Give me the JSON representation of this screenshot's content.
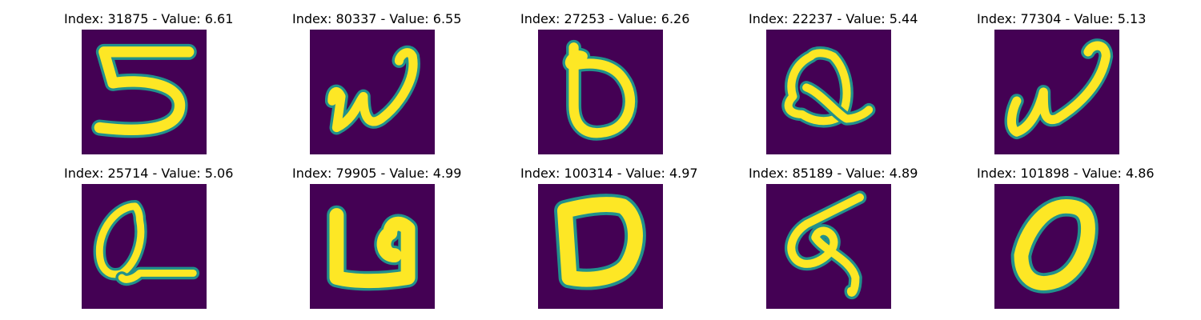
{
  "panels": [
    {
      "index": "31875",
      "value": "6.61",
      "title": "Index: 31875 - Value: 6.61",
      "glyph": "5",
      "icon": "handwritten-5-icon"
    },
    {
      "index": "80337",
      "value": "6.55",
      "title": "Index: 80337 - Value: 6.55",
      "glyph": "w",
      "icon": "handwritten-w-icon"
    },
    {
      "index": "27253",
      "value": "6.26",
      "title": "Index: 27253 - Value: 6.26",
      "glyph": "D",
      "icon": "handwritten-d-icon"
    },
    {
      "index": "22237",
      "value": "5.44",
      "title": "Index: 22237 - Value: 5.44",
      "glyph": "Q",
      "icon": "handwritten-q-icon"
    },
    {
      "index": "77304",
      "value": "5.13",
      "title": "Index: 77304 - Value: 5.13",
      "glyph": "w",
      "icon": "handwritten-w-icon"
    },
    {
      "index": "25714",
      "value": "5.06",
      "title": "Index: 25714 - Value: 5.06",
      "glyph": "Q",
      "icon": "handwritten-q-icon"
    },
    {
      "index": "79905",
      "value": "4.99",
      "title": "Index: 79905 - Value: 4.99",
      "glyph": "a",
      "icon": "handwritten-a-icon"
    },
    {
      "index": "100314",
      "value": "4.97",
      "title": "Index: 100314 - Value: 4.97",
      "glyph": "D",
      "icon": "handwritten-d-icon"
    },
    {
      "index": "85189",
      "value": "4.89",
      "title": "Index: 85189 - Value: 4.89",
      "glyph": "g",
      "icon": "handwritten-g-icon"
    },
    {
      "index": "101898",
      "value": "4.86",
      "title": "Index: 101898 - Value: 4.86",
      "glyph": "0",
      "icon": "handwritten-0-icon"
    }
  ],
  "colors": {
    "background": "#440154",
    "stroke": "#fde725",
    "edge": "#21918c",
    "mid": "#5ec962"
  }
}
